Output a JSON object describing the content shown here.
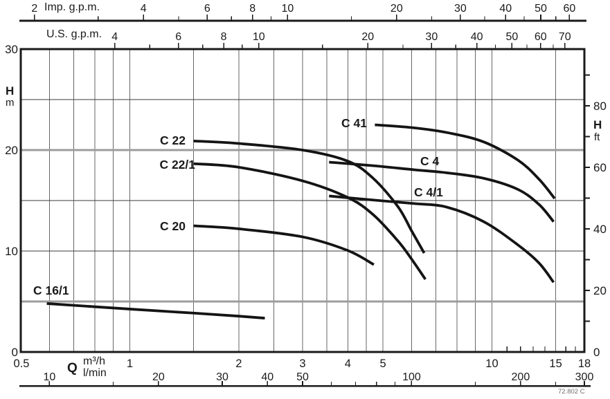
{
  "chart_data": {
    "type": "line",
    "title": "",
    "footnote": "72.802 C",
    "colors": {
      "ink": "#1a1a1a",
      "grid_vertical": "#666666",
      "grid_horizontal_thin": "#3a3a3a",
      "grid_horizontal_gray": "#9c9c9c",
      "curve": "#141414",
      "footnote": "#6e6e6e"
    },
    "x_axis": {
      "label": "Q",
      "unit_primary": "m³/h",
      "unit_secondary": "l/min",
      "scale": "log",
      "range_m3h": [
        0.5,
        18
      ],
      "m3h": {
        "labeled": [
          0.5,
          1,
          2,
          3,
          4,
          5,
          10,
          15,
          18
        ],
        "gridlines": [
          0.6,
          0.7,
          0.8,
          0.9,
          1,
          1.5,
          2,
          2.5,
          3,
          3.5,
          4,
          4.5,
          5,
          6,
          7,
          8,
          9,
          10,
          15
        ],
        "extra_ticks": [
          11,
          12,
          13,
          14,
          16,
          17
        ]
      },
      "lmin": {
        "labeled": [
          10,
          20,
          30,
          40,
          50,
          100,
          200,
          300
        ],
        "minor_ticks": [
          15,
          60,
          70,
          80,
          90,
          150,
          250
        ]
      },
      "imp_gpm": {
        "label": "Imp. g.p.m.",
        "labeled": [
          2,
          4,
          6,
          8,
          10,
          20,
          30,
          40,
          50,
          60
        ],
        "minor_ticks": [
          3,
          5,
          7,
          9,
          15,
          25,
          35,
          45,
          55
        ]
      },
      "us_gpm": {
        "label": "U.S. g.p.m.",
        "labeled": [
          4,
          6,
          8,
          10,
          20,
          30,
          40,
          50,
          60,
          70
        ],
        "minor_ticks": [
          5,
          7,
          9,
          15,
          25,
          35,
          45,
          55,
          65
        ]
      }
    },
    "y_axis": {
      "left": {
        "label": "H",
        "unit": "m",
        "range": [
          0,
          30
        ],
        "labeled": [
          0,
          10,
          20,
          30
        ],
        "gridlines_thin": [
          10,
          15,
          25
        ],
        "gridlines_gray": [
          5,
          20
        ]
      },
      "right": {
        "label": "H",
        "unit": "ft",
        "labeled": [
          0,
          20,
          40,
          60,
          80
        ],
        "tick_values_ft": [
          10,
          20,
          30,
          40,
          50,
          60,
          70,
          80,
          90
        ]
      }
    },
    "series": [
      {
        "name": "C 16/1",
        "points_q_h": [
          [
            0.59,
            4.8
          ],
          [
            1.0,
            4.25
          ],
          [
            1.5,
            3.85
          ],
          [
            2.0,
            3.55
          ],
          [
            2.36,
            3.35
          ]
        ]
      },
      {
        "name": "C 20",
        "points_q_h": [
          [
            1.5,
            12.5
          ],
          [
            2,
            12.2
          ],
          [
            3,
            11.4
          ],
          [
            4,
            10.05
          ],
          [
            4.72,
            8.65
          ]
        ]
      },
      {
        "name": "C 22",
        "points_q_h": [
          [
            1.5,
            20.9
          ],
          [
            2,
            20.65
          ],
          [
            3,
            20.0
          ],
          [
            4,
            18.9
          ],
          [
            4.7,
            17.2
          ],
          [
            5.5,
            14.4
          ],
          [
            6.0,
            12.0
          ],
          [
            6.5,
            9.8
          ]
        ]
      },
      {
        "name": "C 22/1",
        "points_q_h": [
          [
            1.5,
            18.65
          ],
          [
            2,
            18.3
          ],
          [
            3,
            16.95
          ],
          [
            4,
            15.3
          ],
          [
            4.7,
            13.6
          ],
          [
            5.5,
            11.0
          ],
          [
            6.0,
            9.2
          ],
          [
            6.55,
            7.2
          ]
        ]
      },
      {
        "name": "C 41",
        "points_q_h": [
          [
            4.75,
            22.5
          ],
          [
            6.1,
            22.2
          ],
          [
            7.6,
            21.7
          ],
          [
            9.5,
            20.8
          ],
          [
            11.8,
            19.0
          ],
          [
            13.5,
            17.1
          ],
          [
            14.9,
            15.2
          ]
        ]
      },
      {
        "name": "C 4",
        "points_q_h": [
          [
            3.55,
            18.8
          ],
          [
            4.7,
            18.45
          ],
          [
            6.1,
            18.05
          ],
          [
            7.5,
            17.75
          ],
          [
            9.5,
            17.2
          ],
          [
            11.8,
            16.1
          ],
          [
            13.5,
            14.6
          ],
          [
            14.8,
            12.9
          ]
        ]
      },
      {
        "name": "C 4/1",
        "points_q_h": [
          [
            3.55,
            15.45
          ],
          [
            4.7,
            15.05
          ],
          [
            6.1,
            14.7
          ],
          [
            7.5,
            14.35
          ],
          [
            9.5,
            12.9
          ],
          [
            11.8,
            10.6
          ],
          [
            13.5,
            8.8
          ],
          [
            14.8,
            6.9
          ]
        ]
      }
    ]
  }
}
